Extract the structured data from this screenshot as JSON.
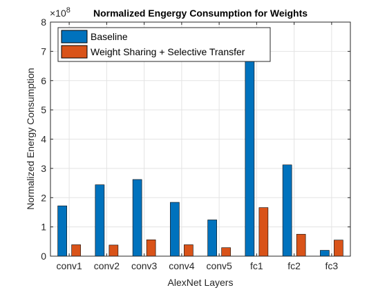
{
  "chart_data": {
    "type": "bar",
    "title": "Normalized Engergy Consumption for Weights",
    "xlabel": "AlexNet Layers",
    "ylabel": "Normalized Energy Consumption",
    "exponent_base": "×10",
    "exponent_power": "8",
    "categories": [
      "conv1",
      "conv2",
      "conv3",
      "conv4",
      "conv5",
      "fc1",
      "fc2",
      "fc3"
    ],
    "ylim": [
      0,
      8
    ],
    "yticks": [
      "0",
      "1",
      "2",
      "3",
      "4",
      "5",
      "6",
      "7",
      "8"
    ],
    "grid": true,
    "legend_position": "top-left",
    "series": [
      {
        "name": "Baseline",
        "color": "#0072BD",
        "values": [
          1.72,
          2.44,
          2.62,
          1.84,
          1.24,
          6.8,
          3.12,
          0.2
        ]
      },
      {
        "name": "Weight Sharing + Selective Transfer",
        "color": "#D95319",
        "values": [
          0.39,
          0.38,
          0.56,
          0.39,
          0.29,
          1.66,
          0.75,
          0.55
        ]
      }
    ]
  }
}
